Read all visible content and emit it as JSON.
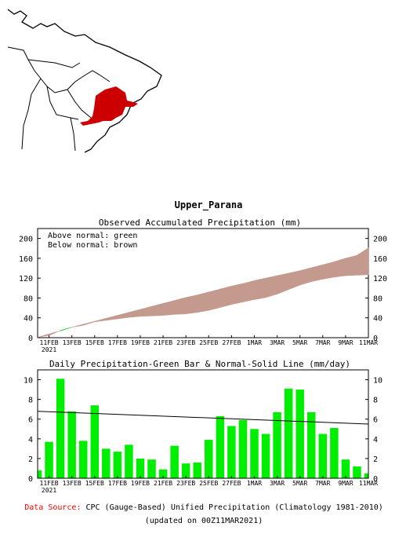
{
  "region_title": "Upper_Parana",
  "footer": {
    "source_label": "Data Source:",
    "source_text": "CPC (Gauge-Based) Unified Precipitation (Climatology 1981-2010)",
    "updated": "(updated on 00Z11MAR2021)"
  },
  "colors": {
    "above": "#00c000",
    "below": "#b07050",
    "accum_band": "#c49a8e",
    "bar": "#00ee00",
    "region": "#cc0000",
    "source_label": "#ff0000"
  },
  "x_tick_labels": [
    "11FEB",
    "13FEB",
    "15FEB",
    "17FEB",
    "19FEB",
    "21FEB",
    "23FEB",
    "25FEB",
    "27FEB",
    "1MAR",
    "3MAR",
    "5MAR",
    "7MAR",
    "9MAR",
    "11MAR"
  ],
  "x_year_label": "2021",
  "chart_data": [
    {
      "type": "area",
      "title": "Observed Accumulated Precipitation (mm)",
      "legend": [
        "Above normal: green",
        "Below normal: brown"
      ],
      "legend_position": "top-left",
      "x": [
        "10FEB",
        "11FEB",
        "12FEB",
        "13FEB",
        "14FEB",
        "15FEB",
        "16FEB",
        "17FEB",
        "18FEB",
        "19FEB",
        "20FEB",
        "21FEB",
        "22FEB",
        "23FEB",
        "24FEB",
        "25FEB",
        "26FEB",
        "27FEB",
        "28FEB",
        "1MAR",
        "2MAR",
        "3MAR",
        "4MAR",
        "5MAR",
        "6MAR",
        "7MAR",
        "8MAR",
        "9MAR",
        "10MAR",
        "11MAR"
      ],
      "series": [
        {
          "name": "Normal",
          "values": [
            0.8,
            7.5,
            14,
            21,
            27,
            33,
            39,
            45,
            51,
            57,
            63,
            69,
            75,
            81,
            86,
            92,
            98,
            104,
            109,
            115,
            120,
            125,
            130,
            135,
            141,
            147,
            153,
            160,
            166,
            181
          ]
        },
        {
          "name": "Observed",
          "values": [
            0.8,
            4.5,
            14.5,
            21,
            25,
            32,
            35,
            38,
            41,
            43,
            44,
            45,
            47,
            48,
            51,
            55,
            61,
            67,
            72,
            77,
            81,
            88,
            97,
            106,
            113,
            118,
            122,
            125,
            126,
            127
          ]
        }
      ],
      "ylim": [
        0,
        220
      ],
      "y_ticks": [
        0,
        40,
        80,
        120,
        160,
        200
      ]
    },
    {
      "type": "bar",
      "title": "Daily Precipitation-Green Bar & Normal-Solid Line (mm/day)",
      "x": [
        "10FEB",
        "11FEB",
        "12FEB",
        "13FEB",
        "14FEB",
        "15FEB",
        "16FEB",
        "17FEB",
        "18FEB",
        "19FEB",
        "20FEB",
        "21FEB",
        "22FEB",
        "23FEB",
        "24FEB",
        "25FEB",
        "26FEB",
        "27FEB",
        "28FEB",
        "1MAR",
        "2MAR",
        "3MAR",
        "4MAR",
        "5MAR",
        "6MAR",
        "7MAR",
        "8MAR",
        "9MAR",
        "10MAR",
        "11MAR"
      ],
      "values": [
        0.8,
        3.7,
        10.1,
        6.8,
        3.8,
        7.4,
        3.0,
        2.7,
        3.4,
        2.0,
        1.9,
        0.9,
        3.3,
        1.5,
        1.6,
        3.9,
        6.3,
        5.3,
        5.9,
        5.0,
        4.5,
        6.7,
        9.1,
        9.0,
        6.7,
        4.5,
        5.1,
        1.9,
        1.2,
        0.5
      ],
      "normal_line": {
        "start": 6.8,
        "end": 5.5
      },
      "ylim": [
        0,
        11
      ],
      "y_ticks": [
        0,
        2,
        4,
        6,
        8,
        10
      ]
    }
  ]
}
